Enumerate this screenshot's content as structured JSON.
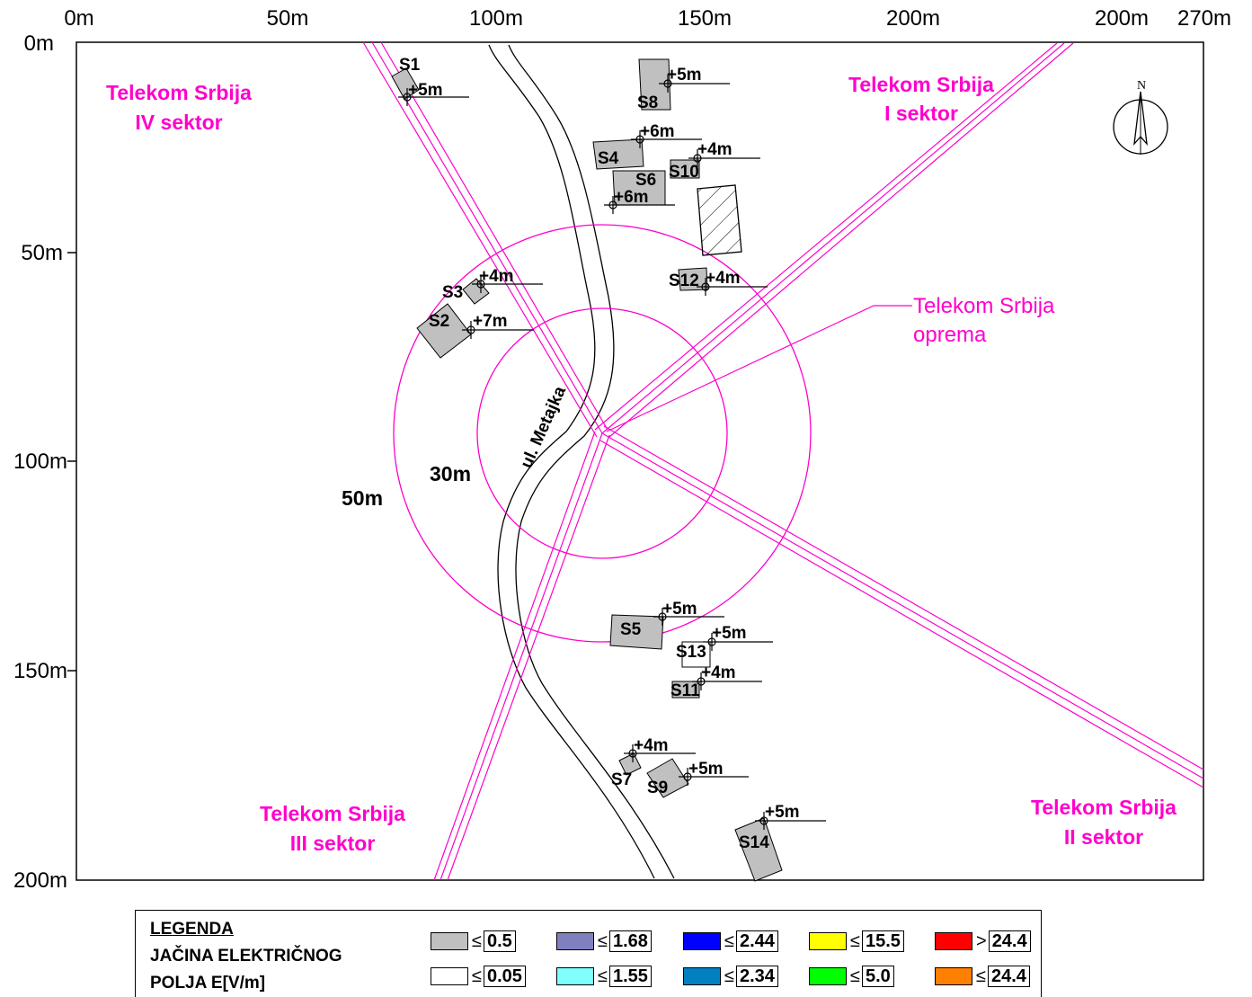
{
  "axes": {
    "x_ticks": [
      "0m",
      "50m",
      "100m",
      "150m",
      "200m",
      "200m",
      "270m"
    ],
    "y_ticks": [
      "0m",
      "50m",
      "100m",
      "150m",
      "200m"
    ]
  },
  "sectors": {
    "s1": [
      "Telekom Srbija",
      "I sektor"
    ],
    "s2": [
      "Telekom Srbija",
      "II sektor"
    ],
    "s3": [
      "Telekom Srbija",
      "III sektor"
    ],
    "s4": [
      "Telekom Srbija",
      "IV sektor"
    ]
  },
  "equipment_label": [
    "Telekom Srbija",
    "oprema"
  ],
  "radii": {
    "r30": "30m",
    "r50": "50m"
  },
  "street": "ul. Metajka",
  "north": "N",
  "buildings": {
    "S1": "S1",
    "S2": "S2",
    "S3": "S3",
    "S4": "S4",
    "S5": "S5",
    "S6": "S6",
    "S7": "S7",
    "S8": "S8",
    "S9": "S9",
    "S10": "S10",
    "S11": "S11",
    "S12": "S12",
    "S13": "S13",
    "S14": "S14"
  },
  "measurements": {
    "S1": "+5m",
    "S2": "+7m",
    "S3": "+4m",
    "S4": "+6m",
    "S5": "+5m",
    "S6": "+6m",
    "S7": "+4m",
    "S8": "+5m",
    "S9": "+5m",
    "S10": "+4m",
    "S11": "+4m",
    "S12": "+4m",
    "S13": "+5m",
    "S14": "+5m"
  },
  "colors": {
    "beam": "#ff00cc",
    "building": "#c0c0c0"
  },
  "legend": {
    "title": "LEGENDA",
    "subtitle_1": "JAČINA ELEKTRIČNOG",
    "subtitle_2": "POLJA E[V/m]",
    "items": [
      {
        "color": "#c0c0c0",
        "op": "≤",
        "value": "0.5"
      },
      {
        "color": "#8080c0",
        "op": "≤",
        "value": "1.68"
      },
      {
        "color": "#0000ff",
        "op": "≤",
        "value": "2.44"
      },
      {
        "color": "#ffff00",
        "op": "≤",
        "value": "15.5"
      },
      {
        "color": "#ff0000",
        "op": ">",
        "value": "24.4"
      },
      {
        "color": "#ffffff",
        "op": "≤",
        "value": "0.05"
      },
      {
        "color": "#80ffff",
        "op": "≤",
        "value": "1.55"
      },
      {
        "color": "#0080c0",
        "op": "≤",
        "value": "2.34"
      },
      {
        "color": "#00ff00",
        "op": "≤",
        "value": "5.0"
      },
      {
        "color": "#ff8000",
        "op": "≤",
        "value": "24.4"
      }
    ]
  }
}
